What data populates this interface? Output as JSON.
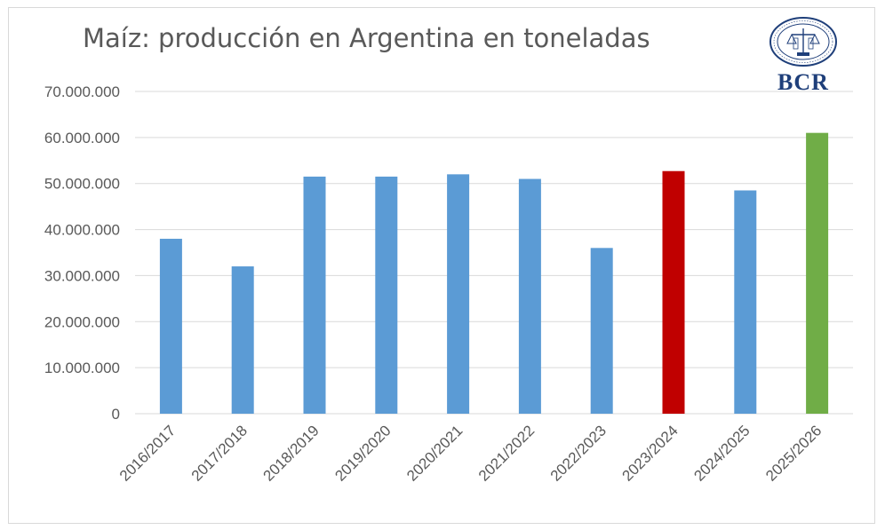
{
  "logo": {
    "text": "BCR",
    "seal": "bolsa-de-comercio-seal"
  },
  "chart_data": {
    "type": "bar",
    "title": "Maíz: producción en Argentina en toneladas",
    "xlabel": "",
    "ylabel": "",
    "ylim": [
      0,
      70000000
    ],
    "yticks": [
      0,
      10000000,
      20000000,
      30000000,
      40000000,
      50000000,
      60000000,
      70000000
    ],
    "ytick_labels": [
      "0",
      "10.000.000",
      "20.000.000",
      "30.000.000",
      "40.000.000",
      "50.000.000",
      "60.000.000",
      "70.000.000"
    ],
    "grid": true,
    "categories": [
      "2016/2017",
      "2017/2018",
      "2018/2019",
      "2019/2020",
      "2020/2021",
      "2021/2022",
      "2022/2023",
      "2023/2024",
      "2024/2025",
      "2025/2026"
    ],
    "values": [
      38000000,
      32000000,
      51500000,
      51500000,
      52000000,
      51000000,
      36000000,
      52700000,
      48500000,
      61000000
    ],
    "bar_colors": [
      "#5b9bd5",
      "#5b9bd5",
      "#5b9bd5",
      "#5b9bd5",
      "#5b9bd5",
      "#5b9bd5",
      "#5b9bd5",
      "#c00000",
      "#5b9bd5",
      "#70ad47"
    ],
    "colors": {
      "axis_text": "#595959",
      "gridline": "#d9d9d9"
    }
  }
}
